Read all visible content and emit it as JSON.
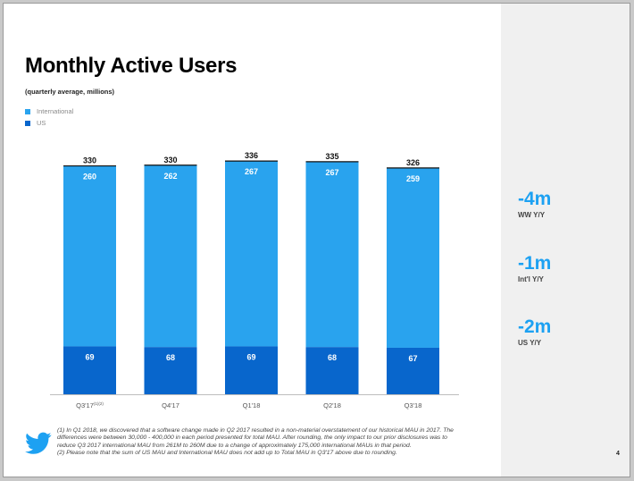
{
  "slide": {
    "title": "Monthly Active Users",
    "subtitle": "(quarterly average, millions)",
    "page_number": "4"
  },
  "colors": {
    "international": "#29a3ee",
    "us": "#0866cc",
    "accent": "#1da1f2",
    "side_panel": "#f0f0f0"
  },
  "chart_data": {
    "type": "bar",
    "stacked": true,
    "categories": [
      "Q3'17",
      "Q4'17",
      "Q1'18",
      "Q2'18",
      "Q3'18"
    ],
    "category_superscripts": [
      "(1)(2)",
      "",
      "",
      "",
      ""
    ],
    "series": [
      {
        "name": "US",
        "values": [
          69,
          68,
          69,
          68,
          67
        ]
      },
      {
        "name": "International",
        "values": [
          260,
          262,
          267,
          267,
          259
        ]
      }
    ],
    "totals": [
      330,
      330,
      336,
      335,
      326
    ],
    "legend": [
      "International",
      "US"
    ],
    "legend_position": "top-left",
    "ylim": [
      0,
      340
    ],
    "grid": false,
    "title": "Monthly Active Users",
    "subtitle": "(quarterly average, millions)"
  },
  "metrics": [
    {
      "value": "-4m",
      "label": "WW Y/Y"
    },
    {
      "value": "-1m",
      "label": "Int'l Y/Y"
    },
    {
      "value": "-2m",
      "label": "US Y/Y"
    }
  ],
  "footnotes": [
    "(1) In Q1 2018, we discovered that a software change made in Q2 2017 resulted in a non-material overstatement of our historical MAU in 2017. The differences were between 30,000 - 400,000 in each period presented for total MAU.  After rounding, the only impact to our prior disclosures was to reduce Q3 2017 international MAU from 261M to 260M due to a change of approximately 175,000 international MAUs in that period.",
    "(2) Please note that the sum of US MAU and International MAU does not add up to Total MAU in Q3'17 above due to rounding."
  ],
  "logo": {
    "icon": "twitter-bird-icon"
  }
}
